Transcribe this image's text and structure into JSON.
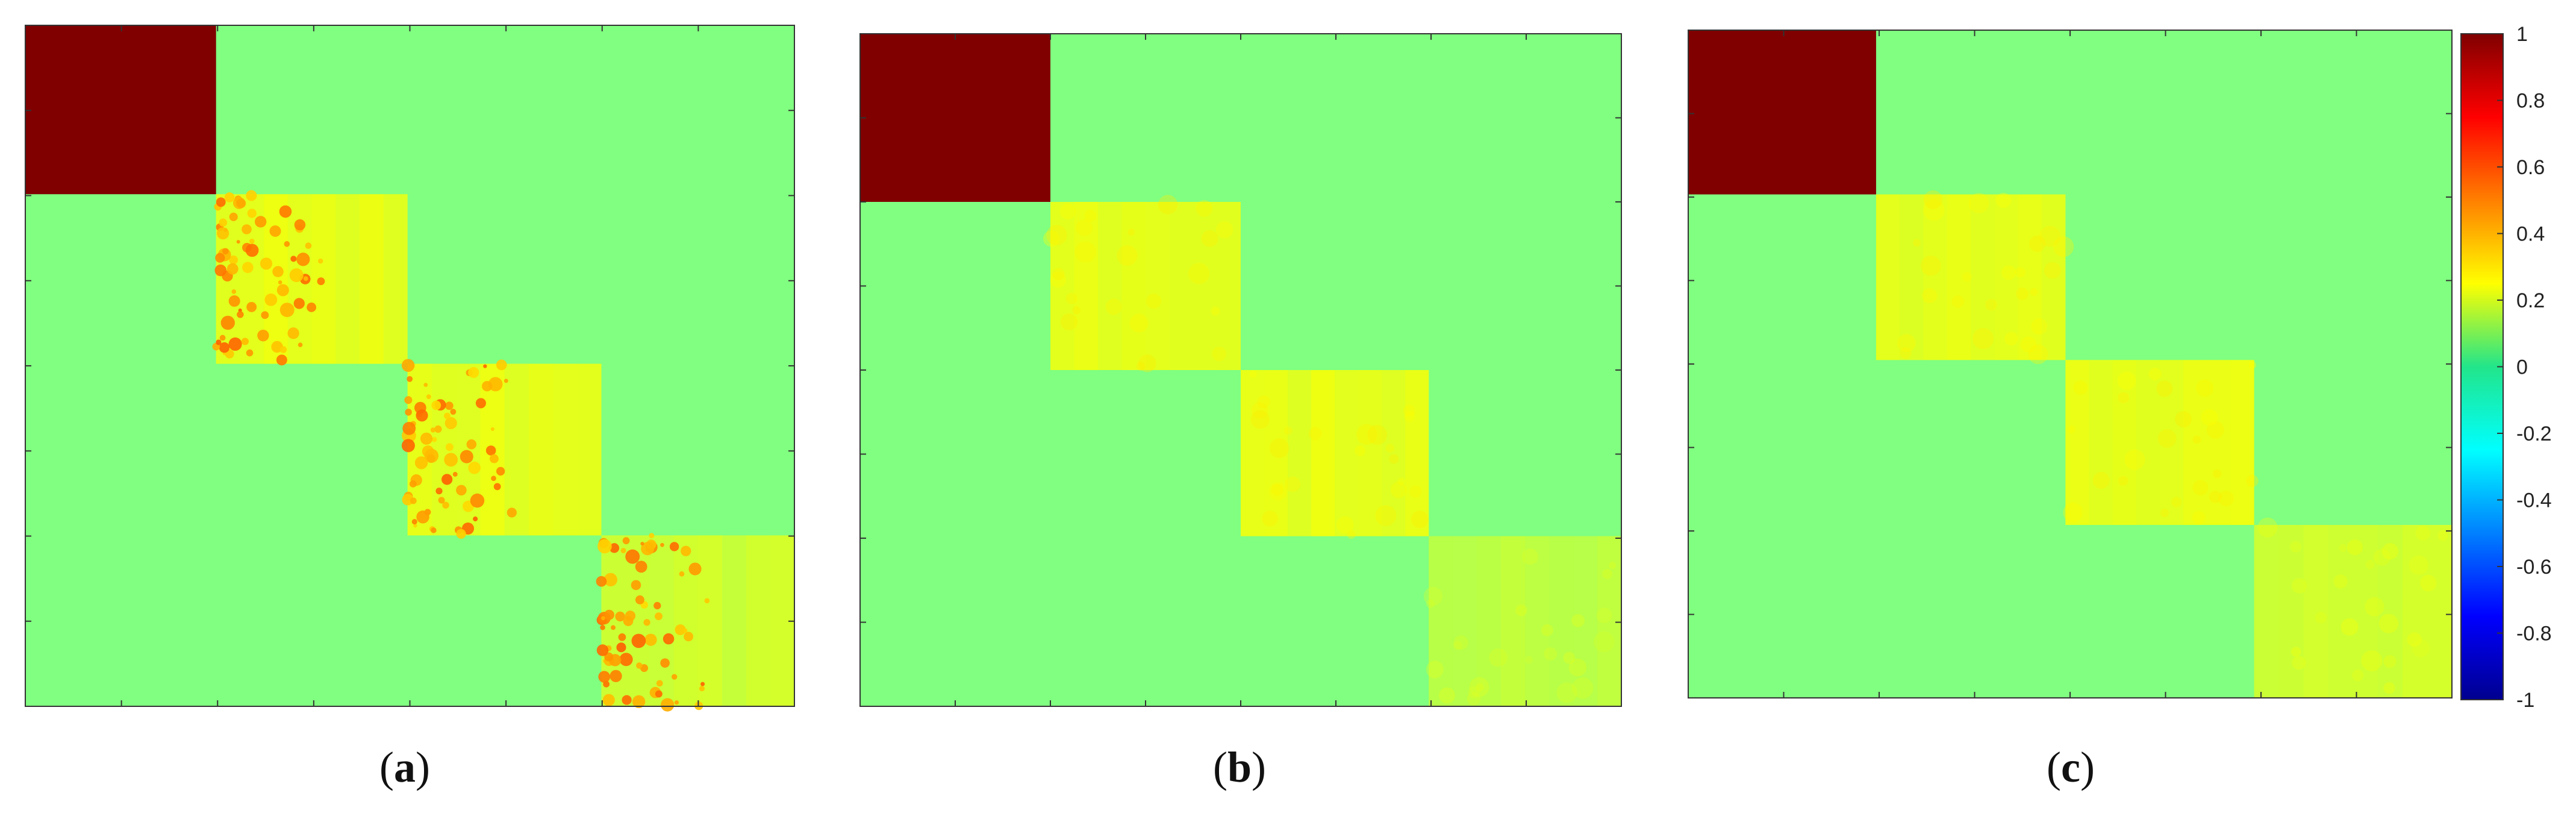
{
  "chart_data": [
    {
      "type": "heatmap",
      "panel": "a",
      "caption_letter": "a",
      "matrix_layout": "block-diagonal, 4 blocks",
      "blocks": [
        {
          "block": 1,
          "within_block_value": 1.0,
          "texture": "uniform"
        },
        {
          "block": 2,
          "within_block_value": 0.2,
          "texture": "noisy, scattered hot spots up to ~0.5"
        },
        {
          "block": 3,
          "within_block_value": 0.2,
          "texture": "noisy, scattered hot spots up to ~0.5"
        },
        {
          "block": 4,
          "within_block_value": 0.15,
          "texture": "noisy, scattered hot spots up to ~0.5"
        }
      ],
      "off_block_value": 0.0,
      "colorbar": false
    },
    {
      "type": "heatmap",
      "panel": "b",
      "caption_letter": "b",
      "matrix_layout": "block-diagonal, 4 blocks",
      "blocks": [
        {
          "block": 1,
          "within_block_value": 1.0,
          "texture": "uniform"
        },
        {
          "block": 2,
          "within_block_value": 0.2,
          "texture": "smooth"
        },
        {
          "block": 3,
          "within_block_value": 0.2,
          "texture": "smooth"
        },
        {
          "block": 4,
          "within_block_value": 0.12,
          "texture": "smooth"
        }
      ],
      "off_block_value": 0.0,
      "colorbar": false
    },
    {
      "type": "heatmap",
      "panel": "c",
      "caption_letter": "c",
      "matrix_layout": "block-diagonal, 4 blocks",
      "blocks": [
        {
          "block": 1,
          "within_block_value": 1.0,
          "texture": "uniform"
        },
        {
          "block": 2,
          "within_block_value": 0.2,
          "texture": "smooth"
        },
        {
          "block": 3,
          "within_block_value": 0.2,
          "texture": "smooth"
        },
        {
          "block": 4,
          "within_block_value": 0.15,
          "texture": "smooth"
        }
      ],
      "off_block_value": 0.0,
      "colorbar": true
    }
  ],
  "colorbar": {
    "colormap": "jet",
    "min": -1,
    "max": 1,
    "tick_values": [
      1,
      0.8,
      0.6,
      0.4,
      0.2,
      0,
      -0.2,
      -0.4,
      -0.6,
      -0.8,
      -1
    ],
    "tick_labels": [
      "1",
      "0.8",
      "0.6",
      "0.4",
      "0.2",
      "0",
      "-0.2",
      "-0.4",
      "-0.6",
      "-0.8",
      "-1"
    ]
  },
  "captions": [
    {
      "open": "(",
      "letter": "a",
      "close": ")"
    },
    {
      "open": "(",
      "letter": "b",
      "close": ")"
    },
    {
      "open": "(",
      "letter": "c",
      "close": ")"
    }
  ]
}
